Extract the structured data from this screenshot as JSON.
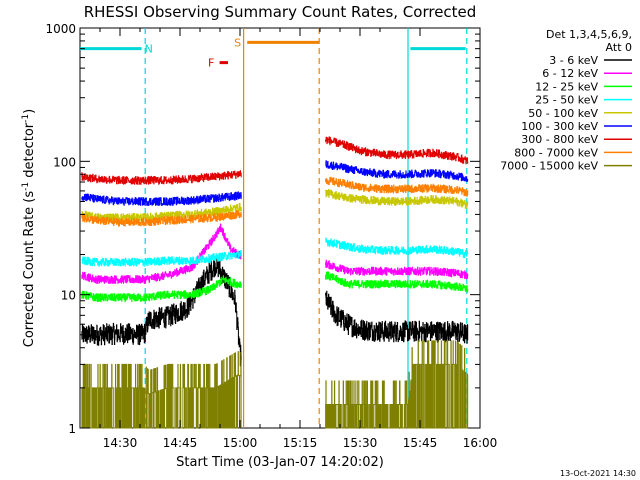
{
  "chart_data": {
    "type": "line",
    "title": "RHESSI Observing Summary Count Rates, Corrected",
    "xlabel": "Start Time (03-Jan-07 14:20:02)",
    "ylabel_main": "Corrected Count Rate (s",
    "ylabel_sup1": "-1",
    "ylabel_mid": " detector",
    "ylabel_sup2": "-1",
    "ylabel_end": ")",
    "y_scale": "log",
    "ylim": [
      1,
      1000
    ],
    "xlim": [
      "14:20",
      "16:00"
    ],
    "x_ticks": [
      {
        "t": 14.5,
        "label": "14:30"
      },
      {
        "t": 14.75,
        "label": "14:45"
      },
      {
        "t": 15.0,
        "label": "15:00"
      },
      {
        "t": 15.25,
        "label": "15:15"
      },
      {
        "t": 15.5,
        "label": "15:30"
      },
      {
        "t": 15.75,
        "label": "15:45"
      },
      {
        "t": 16.0,
        "label": "16:00"
      }
    ],
    "y_ticks": [
      {
        "v": 1,
        "label": "1"
      },
      {
        "v": 10,
        "label": "10"
      },
      {
        "v": 100,
        "label": "100"
      },
      {
        "v": 1000,
        "label": "1000"
      }
    ],
    "legend_header_1": "Det 1,3,4,5,6,9,",
    "legend_header_2": "Att 0",
    "legend_position": "right",
    "timestamp": "13-Oct-2021 14:30",
    "annotations": [
      {
        "label": "N",
        "t": 14.62,
        "v": 700,
        "color": "#00d8d8"
      },
      {
        "label": "F",
        "t": 14.88,
        "v": 550,
        "color": "#e00000"
      },
      {
        "label": "S",
        "t": 14.99,
        "v": 780,
        "color": "#f08000"
      }
    ],
    "bars": [
      {
        "name": "night-left",
        "t0": 14.3333,
        "t1": 14.59,
        "v": 700,
        "color": "#00d8d8"
      },
      {
        "name": "night-right",
        "t0": 15.71,
        "t1": 15.94,
        "v": 700,
        "color": "#00d8d8"
      },
      {
        "name": "saa",
        "t0": 15.03,
        "t1": 15.33,
        "v": 780,
        "color": "#f08000"
      },
      {
        "name": "flare",
        "t0": 14.915,
        "t1": 14.95,
        "v": 550,
        "color": "#e00000"
      }
    ],
    "vlines": [
      {
        "t": 14.605,
        "color": "#00d8d8",
        "dash": true
      },
      {
        "t": 15.015,
        "color": "#f08000",
        "dash": false
      },
      {
        "t": 15.33,
        "color": "#f08000",
        "dash": true
      },
      {
        "t": 15.7,
        "color": "#00d8d8",
        "dash": false
      },
      {
        "t": 15.945,
        "color": "#00d8d8",
        "dash": true
      }
    ],
    "series": [
      {
        "name": "3 - 6 keV",
        "color": "#000000",
        "points": [
          [
            14.34,
            5
          ],
          [
            14.4,
            5
          ],
          [
            14.5,
            5.1
          ],
          [
            14.6,
            5
          ],
          [
            14.62,
            6.5
          ],
          [
            14.7,
            6.8
          ],
          [
            14.78,
            8
          ],
          [
            14.85,
            13
          ],
          [
            14.9,
            17
          ],
          [
            14.95,
            12
          ],
          [
            14.98,
            9
          ],
          [
            15.0,
            3.5
          ],
          [
            15.36,
            9
          ],
          [
            15.4,
            7
          ],
          [
            15.45,
            6
          ],
          [
            15.5,
            5.5
          ],
          [
            15.6,
            5.3
          ],
          [
            15.7,
            5.3
          ],
          [
            15.8,
            5.3
          ],
          [
            15.9,
            5.3
          ],
          [
            15.95,
            5
          ]
        ]
      },
      {
        "name": "6 - 12 keV",
        "color": "#ff00ff",
        "points": [
          [
            14.34,
            14
          ],
          [
            14.4,
            13
          ],
          [
            14.5,
            13
          ],
          [
            14.6,
            13
          ],
          [
            14.7,
            14
          ],
          [
            14.8,
            16
          ],
          [
            14.88,
            25
          ],
          [
            14.92,
            32
          ],
          [
            14.96,
            22
          ],
          [
            14.99,
            20
          ],
          [
            15.36,
            17
          ],
          [
            15.45,
            15
          ],
          [
            15.5,
            15
          ],
          [
            15.6,
            15
          ],
          [
            15.7,
            15
          ],
          [
            15.8,
            15
          ],
          [
            15.9,
            14.5
          ],
          [
            15.95,
            14
          ]
        ]
      },
      {
        "name": "12 - 25 keV",
        "color": "#00ff00",
        "points": [
          [
            14.34,
            10
          ],
          [
            14.4,
            9.5
          ],
          [
            14.5,
            9.5
          ],
          [
            14.6,
            9.5
          ],
          [
            14.7,
            10
          ],
          [
            14.8,
            10
          ],
          [
            14.88,
            11
          ],
          [
            14.93,
            13
          ],
          [
            14.99,
            12
          ],
          [
            15.36,
            14
          ],
          [
            15.45,
            12
          ],
          [
            15.5,
            12
          ],
          [
            15.6,
            12
          ],
          [
            15.7,
            12
          ],
          [
            15.8,
            12
          ],
          [
            15.9,
            11.5
          ],
          [
            15.95,
            11
          ]
        ]
      },
      {
        "name": "25 - 50 keV",
        "color": "#00ffff",
        "points": [
          [
            14.34,
            18
          ],
          [
            14.4,
            17.5
          ],
          [
            14.5,
            17.5
          ],
          [
            14.6,
            17.5
          ],
          [
            14.7,
            18
          ],
          [
            14.8,
            18
          ],
          [
            14.9,
            19
          ],
          [
            14.99,
            20
          ],
          [
            15.36,
            25
          ],
          [
            15.45,
            23
          ],
          [
            15.5,
            22
          ],
          [
            15.6,
            21.5
          ],
          [
            15.7,
            21.5
          ],
          [
            15.8,
            22
          ],
          [
            15.9,
            21
          ],
          [
            15.95,
            20
          ]
        ]
      },
      {
        "name": "50 - 100 keV",
        "color": "#c8c800",
        "points": [
          [
            14.34,
            40
          ],
          [
            14.4,
            38
          ],
          [
            14.5,
            38
          ],
          [
            14.6,
            38
          ],
          [
            14.7,
            39
          ],
          [
            14.8,
            40
          ],
          [
            14.9,
            42
          ],
          [
            14.99,
            45
          ],
          [
            15.36,
            58
          ],
          [
            15.45,
            53
          ],
          [
            15.5,
            52
          ],
          [
            15.6,
            50
          ],
          [
            15.7,
            50
          ],
          [
            15.8,
            52
          ],
          [
            15.9,
            50
          ],
          [
            15.95,
            47
          ]
        ]
      },
      {
        "name": "100 - 300 keV",
        "color": "#0000ff",
        "points": [
          [
            14.34,
            55
          ],
          [
            14.4,
            52
          ],
          [
            14.5,
            50
          ],
          [
            14.6,
            50
          ],
          [
            14.7,
            50
          ],
          [
            14.8,
            51
          ],
          [
            14.9,
            53
          ],
          [
            14.99,
            55
          ],
          [
            15.36,
            95
          ],
          [
            15.45,
            88
          ],
          [
            15.5,
            84
          ],
          [
            15.6,
            80
          ],
          [
            15.7,
            80
          ],
          [
            15.8,
            82
          ],
          [
            15.9,
            78
          ],
          [
            15.95,
            74
          ]
        ]
      },
      {
        "name": "300 - 800 keV",
        "color": "#e00000",
        "points": [
          [
            14.34,
            77
          ],
          [
            14.4,
            74
          ],
          [
            14.5,
            72
          ],
          [
            14.6,
            72
          ],
          [
            14.7,
            72
          ],
          [
            14.8,
            74
          ],
          [
            14.9,
            77
          ],
          [
            14.99,
            80
          ],
          [
            15.36,
            145
          ],
          [
            15.45,
            130
          ],
          [
            15.5,
            120
          ],
          [
            15.6,
            112
          ],
          [
            15.7,
            112
          ],
          [
            15.8,
            116
          ],
          [
            15.9,
            108
          ],
          [
            15.95,
            100
          ]
        ]
      },
      {
        "name": "800 - 7000 keV",
        "color": "#ff8000",
        "points": [
          [
            14.34,
            38
          ],
          [
            14.4,
            36
          ],
          [
            14.5,
            35
          ],
          [
            14.6,
            35
          ],
          [
            14.7,
            36
          ],
          [
            14.8,
            37
          ],
          [
            14.9,
            38
          ],
          [
            14.99,
            40
          ],
          [
            15.36,
            72
          ],
          [
            15.45,
            67
          ],
          [
            15.5,
            64
          ],
          [
            15.6,
            62
          ],
          [
            15.7,
            62
          ],
          [
            15.8,
            63
          ],
          [
            15.9,
            61
          ],
          [
            15.95,
            58
          ]
        ]
      },
      {
        "name": "7000 - 15000 keV",
        "color": "#808000",
        "points": [
          [
            14.34,
            2
          ],
          [
            14.4,
            2
          ],
          [
            14.5,
            2
          ],
          [
            14.6,
            2
          ],
          [
            14.62,
            1.8
          ],
          [
            14.7,
            2
          ],
          [
            14.8,
            2
          ],
          [
            14.9,
            2
          ],
          [
            14.99,
            2.5
          ],
          [
            15.36,
            1.5
          ],
          [
            15.45,
            1.5
          ],
          [
            15.5,
            1.5
          ],
          [
            15.6,
            1.5
          ],
          [
            15.7,
            1.5
          ],
          [
            15.72,
            3
          ],
          [
            15.8,
            3
          ],
          [
            15.9,
            3
          ],
          [
            15.95,
            2.5
          ]
        ]
      }
    ]
  }
}
